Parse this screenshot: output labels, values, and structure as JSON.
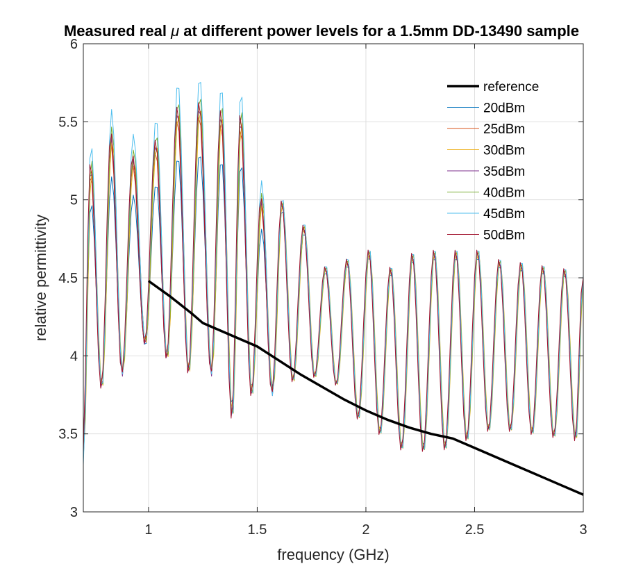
{
  "chart_data": {
    "type": "line",
    "title_prefix": "Measured real ",
    "title_symbol": "μ",
    "title_suffix": " at different power levels for a 1.5mm DD-13490 sample",
    "xlabel": "frequency (GHz)",
    "ylabel": "relative permittivity",
    "xlim": [
      0.7,
      3.0
    ],
    "ylim": [
      3.0,
      6.0
    ],
    "xticks": [
      1,
      1.5,
      2,
      2.5,
      3
    ],
    "xtick_labels": [
      "1",
      "1.5",
      "2",
      "2.5",
      "3"
    ],
    "yticks": [
      3,
      3.5,
      4,
      4.5,
      5,
      5.5,
      6
    ],
    "ytick_labels": [
      "3",
      "3.5",
      "4",
      "4.5",
      "5",
      "5.5",
      "6"
    ],
    "grid": true,
    "legend_position": "top-right",
    "reference": {
      "name": "reference",
      "color": "#000000",
      "x": [
        1.0,
        1.1,
        1.2,
        1.25,
        1.3,
        1.4,
        1.5,
        1.6,
        1.7,
        1.8,
        1.9,
        2.0,
        2.1,
        2.2,
        2.3,
        2.4,
        2.5,
        2.6,
        2.7,
        2.8,
        2.9,
        3.0
      ],
      "y": [
        4.48,
        4.38,
        4.27,
        4.21,
        4.18,
        4.12,
        4.06,
        3.97,
        3.88,
        3.8,
        3.72,
        3.65,
        3.59,
        3.54,
        3.5,
        3.47,
        3.41,
        3.35,
        3.29,
        3.23,
        3.17,
        3.11
      ]
    },
    "oscillation": {
      "peak_freqs": [
        0.735,
        0.83,
        0.93,
        1.035,
        1.135,
        1.235,
        1.335,
        1.425,
        1.52,
        1.615,
        1.715,
        1.815,
        1.915,
        2.015,
        2.115,
        2.215,
        2.315,
        2.415,
        2.515,
        2.615,
        2.715,
        2.815,
        2.915
      ],
      "peak_values": [
        5.25,
        5.45,
        5.3,
        5.4,
        5.62,
        5.65,
        5.6,
        5.57,
        5.02,
        5.0,
        4.84,
        4.57,
        4.62,
        4.68,
        4.57,
        4.66,
        4.68,
        4.68,
        4.68,
        4.62,
        4.6,
        4.58,
        4.56
      ],
      "trough_freqs": [
        0.7,
        0.785,
        0.88,
        0.985,
        1.085,
        1.185,
        1.29,
        1.385,
        1.475,
        1.57,
        1.665,
        1.765,
        1.865,
        1.965,
        2.065,
        2.165,
        2.265,
        2.365,
        2.465,
        2.565,
        2.665,
        2.765,
        2.865,
        2.965,
        3.0
      ],
      "trough_values": [
        3.3,
        3.75,
        3.85,
        4.05,
        3.95,
        3.85,
        3.85,
        3.55,
        3.7,
        3.72,
        3.82,
        3.85,
        3.8,
        3.58,
        3.48,
        3.38,
        3.37,
        3.38,
        3.44,
        3.5,
        3.5,
        3.48,
        3.46,
        3.44,
        4.5
      ]
    },
    "series": [
      {
        "name": "20dBm",
        "color": "#0072BD",
        "amp": 0.78,
        "offset": -0.05,
        "phase": 0.0
      },
      {
        "name": "25dBm",
        "color": "#D95319",
        "amp": 0.92,
        "offset": 0.0,
        "phase": 0.002
      },
      {
        "name": "30dBm",
        "color": "#EDB120",
        "amp": 0.94,
        "offset": 0.01,
        "phase": -0.002
      },
      {
        "name": "35dBm",
        "color": "#7E2F8E",
        "amp": 0.96,
        "offset": 0.0,
        "phase": 0.001
      },
      {
        "name": "40dBm",
        "color": "#77AC30",
        "amp": 0.99,
        "offset": 0.03,
        "phase": -0.001
      },
      {
        "name": "45dBm",
        "color": "#4DBEEE",
        "amp": 1.06,
        "offset": 0.06,
        "phase": 0.0
      },
      {
        "name": "50dBm",
        "color": "#A2142F",
        "amp": 0.97,
        "offset": 0.02,
        "phase": 0.003
      }
    ]
  }
}
